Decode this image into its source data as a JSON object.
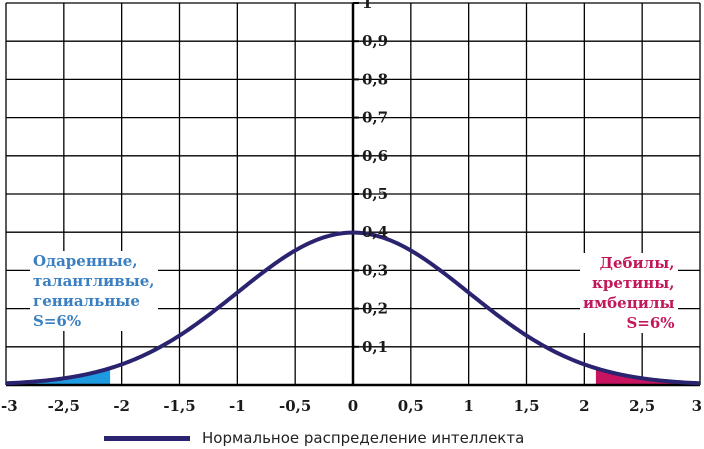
{
  "chart_data": {
    "type": "line",
    "xlim": [
      -3,
      3
    ],
    "ylim": [
      0,
      1
    ],
    "x_ticks": [
      "-3",
      "-2,5",
      "-2",
      "-1,5",
      "-1",
      "-0,5",
      "0",
      "0,5",
      "1",
      "1,5",
      "2",
      "2,5",
      "3"
    ],
    "y_ticks": [
      "0,1",
      "0,2",
      "0,3",
      "0,4",
      "0,5",
      "0,6",
      "0,7",
      "0,8",
      "0,9",
      "1"
    ],
    "grid": true,
    "series": [
      {
        "name": "Нормальное распределение интеллекта",
        "color": "#2a2370",
        "x": [
          -3,
          -2.75,
          -2.5,
          -2.25,
          -2,
          -1.75,
          -1.5,
          -1.25,
          -1,
          -0.75,
          -0.5,
          -0.25,
          0,
          0.25,
          0.5,
          0.75,
          1,
          1.25,
          1.5,
          1.75,
          2,
          2.25,
          2.5,
          2.75,
          3
        ],
        "y": [
          0.004,
          0.009,
          0.018,
          0.032,
          0.054,
          0.086,
          0.13,
          0.183,
          0.242,
          0.301,
          0.352,
          0.387,
          0.399,
          0.387,
          0.352,
          0.301,
          0.242,
          0.183,
          0.13,
          0.086,
          0.054,
          0.032,
          0.018,
          0.009,
          0.004
        ]
      }
    ],
    "shaded_regions": [
      {
        "x_from": -3,
        "x_to": -2.1,
        "color": "#1e9be0"
      },
      {
        "x_from": 2.1,
        "x_to": 3,
        "color": "#c81460"
      }
    ],
    "annotations": [
      {
        "lines": [
          "Одаренные,",
          "талантливые,",
          "гениальные",
          "S=6%"
        ],
        "color": "#3a7fc1",
        "align": "left"
      },
      {
        "lines": [
          "Дебилы,",
          "кретины,",
          "имбецилы",
          "S=6%"
        ],
        "color": "#c2185b",
        "align": "right"
      }
    ],
    "legend": {
      "label": "Нормальное распределение интеллекта",
      "position": "bottom"
    }
  }
}
